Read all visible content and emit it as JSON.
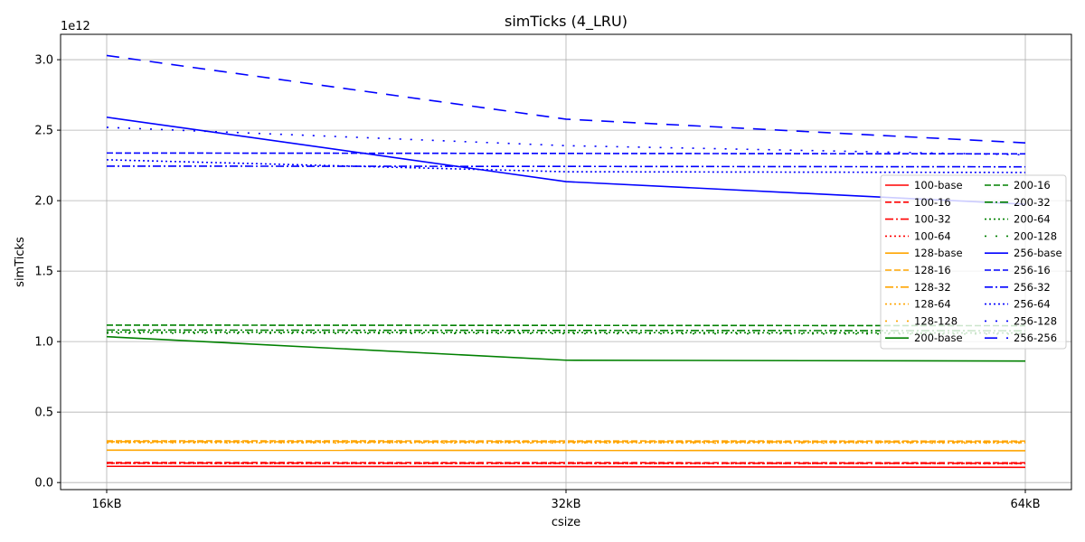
{
  "chart_data": {
    "type": "line",
    "title": "simTicks (4_LRU)",
    "xlabel": "csize",
    "ylabel": "simTicks",
    "y_offset_label": "1e12",
    "categories": [
      "16kB",
      "32kB",
      "64kB"
    ],
    "ylim": [
      -0.05,
      3.18
    ],
    "yticks": [
      0.0,
      0.5,
      1.0,
      1.5,
      2.0,
      2.5,
      3.0
    ],
    "ytick_labels": [
      "0.0",
      "0.5",
      "1.0",
      "1.5",
      "2.0",
      "2.5",
      "3.0"
    ],
    "grid": true,
    "legend_position": "center-right",
    "legend_columns": 2,
    "series": [
      {
        "name": "100-base",
        "color": "#ff0000",
        "dash": "solid",
        "values": [
          0.115,
          0.113,
          0.108
        ]
      },
      {
        "name": "100-16",
        "color": "#ff0000",
        "dash": "dashed",
        "values": [
          0.142,
          0.141,
          0.14
        ]
      },
      {
        "name": "100-32",
        "color": "#ff0000",
        "dash": "dashdot",
        "values": [
          0.138,
          0.137,
          0.136
        ]
      },
      {
        "name": "100-64",
        "color": "#ff0000",
        "dash": "dotted",
        "values": [
          0.136,
          0.135,
          0.134
        ]
      },
      {
        "name": "128-base",
        "color": "#ffa500",
        "dash": "solid",
        "values": [
          0.23,
          0.228,
          0.226
        ]
      },
      {
        "name": "128-16",
        "color": "#ffa500",
        "dash": "dashed",
        "values": [
          0.296,
          0.295,
          0.294
        ]
      },
      {
        "name": "128-32",
        "color": "#ffa500",
        "dash": "dashdot",
        "values": [
          0.29,
          0.289,
          0.288
        ]
      },
      {
        "name": "128-64",
        "color": "#ffa500",
        "dash": "dotted",
        "values": [
          0.285,
          0.284,
          0.283
        ]
      },
      {
        "name": "128-128",
        "color": "#ffa500",
        "dash": "loose",
        "values": [
          0.282,
          0.281,
          0.28
        ]
      },
      {
        "name": "200-base",
        "color": "#008000",
        "dash": "solid",
        "values": [
          1.035,
          0.868,
          0.862
        ]
      },
      {
        "name": "200-16",
        "color": "#008000",
        "dash": "dashed",
        "values": [
          1.117,
          1.115,
          1.113
        ]
      },
      {
        "name": "200-32",
        "color": "#008000",
        "dash": "dashdot",
        "values": [
          1.082,
          1.079,
          1.077
        ]
      },
      {
        "name": "200-64",
        "color": "#008000",
        "dash": "dotted",
        "values": [
          1.068,
          1.064,
          1.061
        ]
      },
      {
        "name": "200-128",
        "color": "#008000",
        "dash": "loose",
        "values": [
          1.06,
          1.057,
          1.054
        ]
      },
      {
        "name": "256-base",
        "color": "#0000ff",
        "dash": "solid",
        "values": [
          2.592,
          2.135,
          1.975
        ]
      },
      {
        "name": "256-16",
        "color": "#0000ff",
        "dash": "dashed",
        "values": [
          2.338,
          2.335,
          2.332
        ]
      },
      {
        "name": "256-32",
        "color": "#0000ff",
        "dash": "dashdot",
        "values": [
          2.245,
          2.243,
          2.24
        ]
      },
      {
        "name": "256-64",
        "color": "#0000ff",
        "dash": "dotted",
        "values": [
          2.29,
          2.205,
          2.2
        ]
      },
      {
        "name": "256-128",
        "color": "#0000ff",
        "dash": "loose",
        "values": [
          2.52,
          2.39,
          2.325
        ]
      },
      {
        "name": "256-256",
        "color": "#0000ff",
        "dash": "longdash",
        "values": [
          3.03,
          2.578,
          2.41
        ]
      }
    ]
  }
}
